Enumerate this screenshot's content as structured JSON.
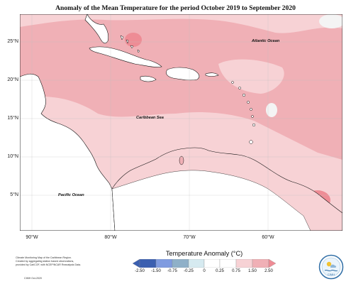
{
  "title": "Anomaly of the Mean Temperature for the period October 2019 to September 2020",
  "map": {
    "lat_labels": [
      "25°N",
      "20°N",
      "15°N",
      "10°N",
      "5°N"
    ],
    "lon_labels": [
      "90°W",
      "80°W",
      "70°W",
      "60°W"
    ],
    "ocean_labels": {
      "atlantic": "Atlantic Ocean",
      "caribbean": "Caribbean Sea",
      "pacific": "Pacific Ocean"
    },
    "colors": {
      "anomaly_025_075": "#f7d2d5",
      "anomaly_075_150": "#f0b0b6",
      "anomaly_150_250": "#ee8c95",
      "anomaly_near_zero": "#f4f4f4",
      "land": "#ffffff",
      "coast": "#111111"
    }
  },
  "legend": {
    "title": "Temperature Anomaly (°C)",
    "ticks": [
      "-2.50",
      "-1.50",
      "-0.75",
      "-0.25",
      "0",
      "0.25",
      "0.75",
      "1.50",
      "2.50"
    ],
    "colors": [
      "#3b5fb0",
      "#7f9be0",
      "#8fb0c8",
      "#d6eaf0",
      "#ffffff",
      "#f7d2d5",
      "#f0b0b6",
      "#ee8c95"
    ]
  },
  "credit": {
    "lines": [
      "Climate Monitoring Map of the Caribbean Region.",
      "Created by aggregating station based observations,",
      "provided by CariCOF, with NCEP/NCAR Reanalysis Data."
    ],
    "date": "CIMH Oct-2020"
  },
  "logo": {
    "text": "CIMH"
  }
}
